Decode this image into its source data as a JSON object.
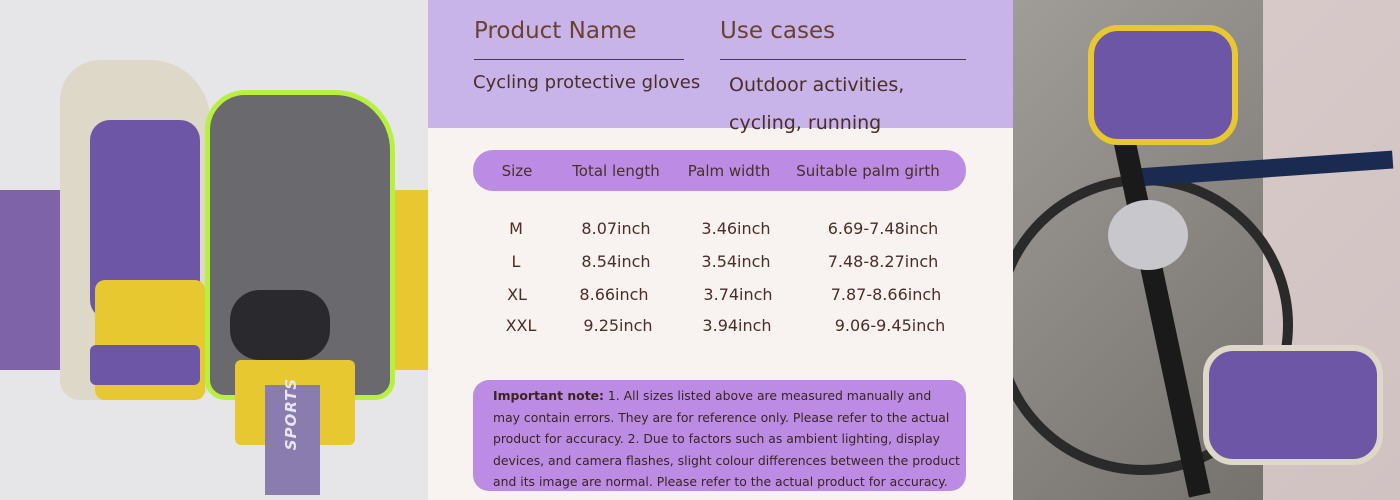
{
  "header": {
    "product_name_label": "Product Name",
    "use_cases_label": "Use cases",
    "product_name": "Cycling protective gloves",
    "use_cases_line1": "Outdoor activities,",
    "use_cases_line2": "cycling, running"
  },
  "size_table": {
    "columns": [
      "Size",
      "Total length",
      "Palm width",
      "Suitable palm girth"
    ],
    "rows": [
      [
        "M",
        "8.07inch",
        "3.46inch",
        "6.69-7.48inch"
      ],
      [
        "L",
        "8.54inch",
        "3.54inch",
        "7.48-8.27inch"
      ],
      [
        "XL",
        "8.66inch",
        "3.74inch",
        "7.87-8.66inch"
      ],
      [
        "XXL",
        "9.25inch",
        "3.94inch",
        "9.06-9.45inch"
      ]
    ]
  },
  "note": {
    "label": "Important note:",
    "text": " 1. All sizes listed above are measured manually and may contain errors. They are for reference only. Please refer to the actual product for accuracy. 2. Due to factors such as ambient lighting, display devices, and camera flashes, slight colour differences between the product and its image are normal. Please refer to the actual product for accuracy."
  },
  "images": {
    "left_logo_text": "SPORTS"
  },
  "colors": {
    "lavender": "#c8b4e8",
    "pill": "#bc8ce4",
    "glove_purple": "#6e56a6",
    "glove_yellow": "#e8c830",
    "glove_green": "#b8f040"
  }
}
